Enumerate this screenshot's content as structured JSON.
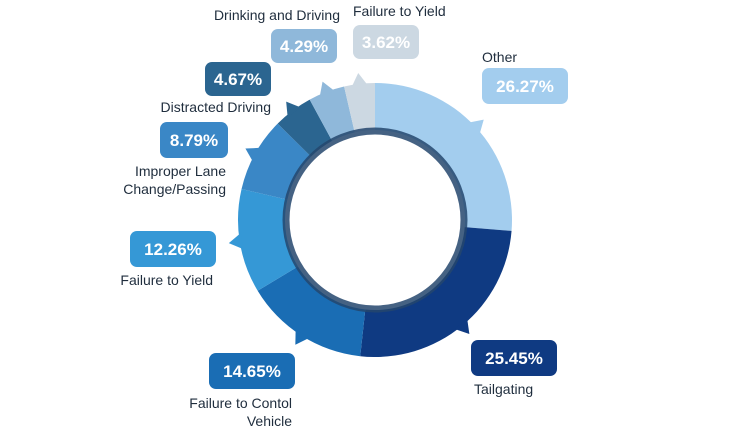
{
  "chart_data": {
    "type": "pie",
    "categories": [
      "Other",
      "Tailgating",
      "Failure to Contol Vehicle",
      "Failure to Yield",
      "Improper Lane Change/Passing",
      "Distracted Driving",
      "Drinking and Driving",
      "Failure to Yield"
    ],
    "values": [
      26.27,
      25.45,
      14.65,
      12.26,
      8.79,
      4.67,
      4.29,
      3.62
    ],
    "value_labels": [
      "26.27%",
      "25.45%",
      "14.65%",
      "12.26%",
      "8.79%",
      "4.67%",
      "4.29%",
      "3.62%"
    ],
    "colors": [
      "#a3cdee",
      "#0f3a82",
      "#1a6db4",
      "#3598d6",
      "#3a87c6",
      "#2b6590",
      "#8fb8da",
      "#ccd8e2"
    ],
    "label_badge_colors": [
      "#a3cdee",
      "#0f3a82",
      "#1a6db4",
      "#3598d6",
      "#3a87c6",
      "#2b6590",
      "#8fb8da",
      "#ccd8e2"
    ],
    "donut": true,
    "title": "",
    "legend": "none"
  }
}
